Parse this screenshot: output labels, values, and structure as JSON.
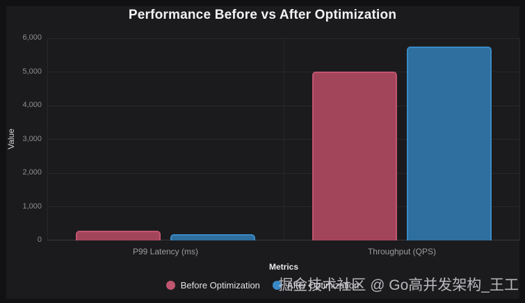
{
  "title": "Performance Before vs After Optimization",
  "watermark": "掘金技术社区 @ Go高并发架构_王工",
  "colors": {
    "outer_background": "#111114",
    "panel_background": "#1b1b1d",
    "gridline": "#29292c",
    "axis_line": "#3a3a3e",
    "title_text": "#f2f2f4",
    "tick_text": "#8f8f94",
    "before_series": "#c05570",
    "before_bar_fill": "#a3455a",
    "after_series": "#3a8ac8",
    "after_bar_fill": "#2e6f9f"
  },
  "chart_data": {
    "type": "bar",
    "title": "Performance Before vs After Optimization",
    "categories": [
      "P99 Latency (ms)",
      "Throughput (QPS)"
    ],
    "series": [
      {
        "name": "Before Optimization",
        "values": [
          280,
          5000
        ],
        "color": "#c05570",
        "bar_fill": "#a3455a"
      },
      {
        "name": "After Optimization",
        "values": [
          180,
          5750
        ],
        "color": "#3a8ac8",
        "bar_fill": "#2e6f9f"
      }
    ],
    "xlabel": "Metrics",
    "ylabel": "Value",
    "ylim": [
      0,
      6000
    ],
    "ytick_step": 1000,
    "yticks": [
      "0",
      "1,000",
      "2,000",
      "3,000",
      "4,000",
      "5,000",
      "6,000"
    ],
    "grid": true,
    "legend_position": "bottom"
  }
}
